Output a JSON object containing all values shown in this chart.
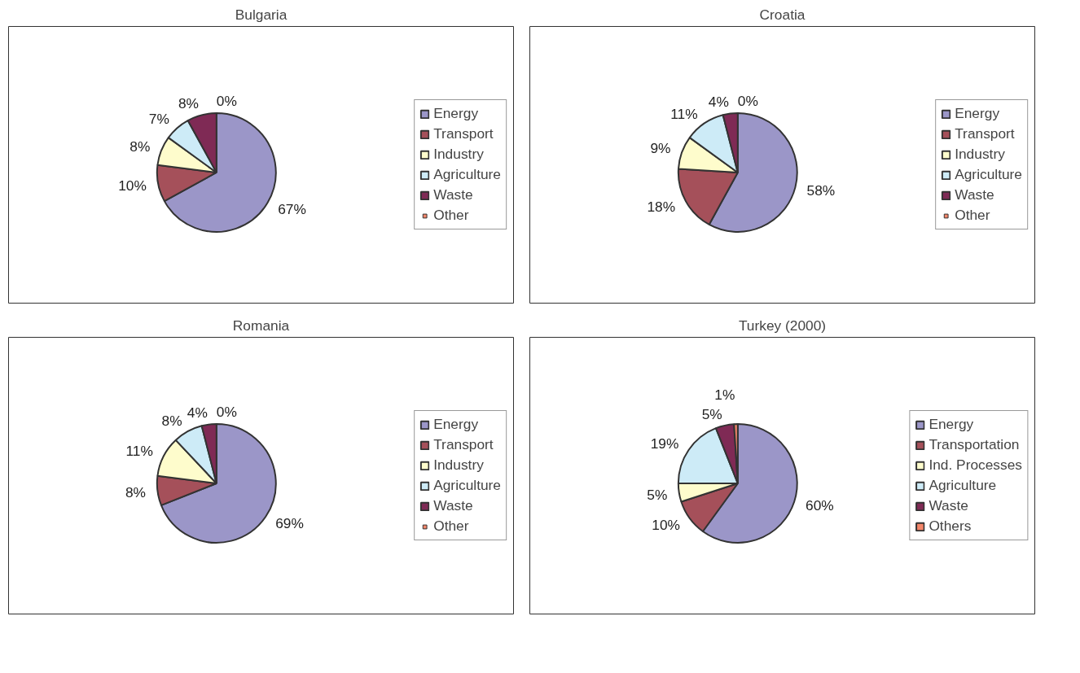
{
  "chart_data": [
    {
      "type": "pie",
      "title": "Bulgaria",
      "legend": "right",
      "categories": [
        "Energy",
        "Transport",
        "Industry",
        "Agriculture",
        "Waste",
        "Other"
      ],
      "values": [
        67,
        10,
        8,
        7,
        8,
        0
      ],
      "value_labels": [
        "67%",
        "10%",
        "8%",
        "7%",
        "8%",
        "0%"
      ],
      "colors": [
        "#9b96c8",
        "#a5505a",
        "#fefccc",
        "#cdebf7",
        "#7f2a55",
        "#f4866a"
      ]
    },
    {
      "type": "pie",
      "title": "Croatia",
      "legend": "right",
      "categories": [
        "Energy",
        "Transport",
        "Industry",
        "Agriculture",
        "Waste",
        "Other"
      ],
      "values": [
        58,
        18,
        9,
        11,
        4,
        0
      ],
      "value_labels": [
        "58%",
        "18%",
        "9%",
        "11%",
        "4%",
        "0%"
      ],
      "colors": [
        "#9b96c8",
        "#a5505a",
        "#fefccc",
        "#cdebf7",
        "#7f2a55",
        "#f4866a"
      ]
    },
    {
      "type": "pie",
      "title": "Romania",
      "legend": "right",
      "categories": [
        "Energy",
        "Transport",
        "Industry",
        "Agriculture",
        "Waste",
        "Other"
      ],
      "values": [
        69,
        8,
        11,
        8,
        4,
        0
      ],
      "value_labels": [
        "69%",
        "8%",
        "11%",
        "8%",
        "4%",
        "0%"
      ],
      "colors": [
        "#9b96c8",
        "#a5505a",
        "#fefccc",
        "#cdebf7",
        "#7f2a55",
        "#f4866a"
      ]
    },
    {
      "type": "pie",
      "title": "Turkey (2000)",
      "legend": "right",
      "categories": [
        "Energy",
        "Transportation",
        "Ind. Processes",
        "Agriculture",
        "Waste",
        "Others"
      ],
      "values": [
        60,
        10,
        5,
        19,
        5,
        1
      ],
      "value_labels": [
        "60%",
        "10%",
        "5%",
        "19%",
        "5%",
        "1%"
      ],
      "colors": [
        "#9b96c8",
        "#a5505a",
        "#fefccc",
        "#cdebf7",
        "#7f2a55",
        "#f4866a"
      ]
    }
  ]
}
